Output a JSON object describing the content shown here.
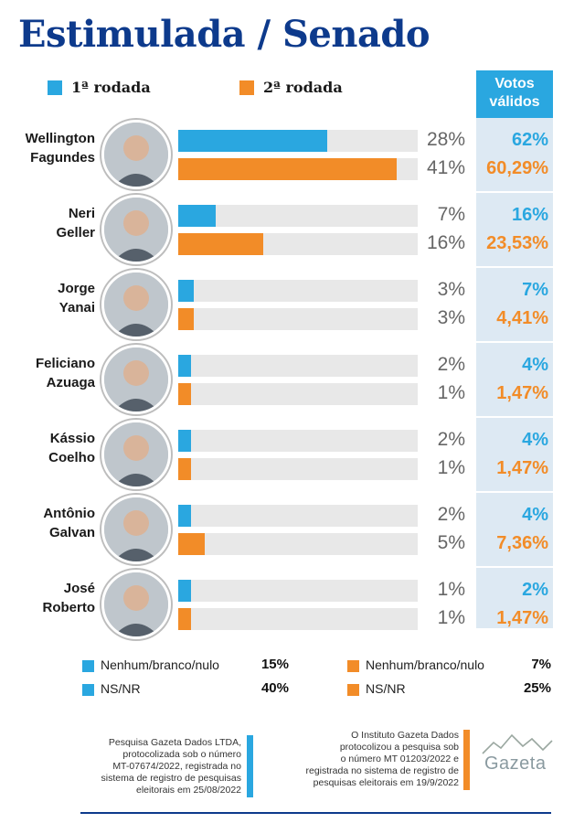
{
  "title": "Estimulada / Senado",
  "legend": {
    "round1": "1ª rodada",
    "round2": "2ª rodada"
  },
  "votos_validos_header": [
    "Votos",
    "válidos"
  ],
  "colors": {
    "round1": "#2aa7e0",
    "round2": "#f28c28",
    "title": "#0d3a8c",
    "track": "#e8e8e8"
  },
  "chart_data": {
    "type": "bar",
    "title": "Estimulada / Senado",
    "xlim": [
      0,
      45
    ],
    "series": [
      {
        "name": "1ª rodada",
        "values": [
          28,
          7,
          3,
          2,
          2,
          2,
          1
        ],
        "valid_votes": [
          "62%",
          "16%",
          "7%",
          "4%",
          "4%",
          "4%",
          "2%"
        ]
      },
      {
        "name": "2ª rodada",
        "values": [
          41,
          16,
          3,
          1,
          1,
          5,
          1
        ],
        "valid_votes": [
          "60,29%",
          "23,53%",
          "4,41%",
          "1,47%",
          "1,47%",
          "7,36%",
          "1,47%"
        ]
      }
    ],
    "candidates": [
      {
        "first": "Wellington",
        "last": "Fagundes",
        "r1": "28%",
        "r2": "41%",
        "vv1": "62%",
        "vv2": "60,29%"
      },
      {
        "first": "Neri",
        "last": "Geller",
        "r1": "7%",
        "r2": "16%",
        "vv1": "16%",
        "vv2": "23,53%"
      },
      {
        "first": "Jorge",
        "last": "Yanai",
        "r1": "3%",
        "r2": "3%",
        "vv1": "7%",
        "vv2": "4,41%"
      },
      {
        "first": "Feliciano",
        "last": "Azuaga",
        "r1": "2%",
        "r2": "1%",
        "vv1": "4%",
        "vv2": "1,47%"
      },
      {
        "first": "Kássio",
        "last": "Coelho",
        "r1": "2%",
        "r2": "1%",
        "vv1": "4%",
        "vv2": "1,47%"
      },
      {
        "first": "Antônio",
        "last": "Galvan",
        "r1": "2%",
        "r2": "5%",
        "vv1": "4%",
        "vv2": "7,36%"
      },
      {
        "first": "José",
        "last": "Roberto",
        "r1": "1%",
        "r2": "1%",
        "vv1": "2%",
        "vv2": "1,47%"
      }
    ]
  },
  "summary": {
    "round1": [
      {
        "label": "Nenhum/branco/nulo",
        "value": "15%"
      },
      {
        "label": "NS/NR",
        "value": "40%"
      }
    ],
    "round2": [
      {
        "label": "Nenhum/branco/nulo",
        "value": "7%"
      },
      {
        "label": "NS/NR",
        "value": "25%"
      }
    ]
  },
  "footnotes": {
    "round1": [
      "Pesquisa Gazeta Dados LTDA,",
      "protocolizada sob o número",
      "MT-07674/2022, registrada no",
      "sistema de registro de pesquisas",
      "eleitorais em 25/08/2022"
    ],
    "round2": [
      "O Instituto Gazeta Dados",
      "protocolizou a pesquisa sob",
      "o número MT 01203/2022 e",
      "registrada no sistema de registro de",
      "pesquisas eleitorais em 19/9/2022"
    ]
  },
  "logo": {
    "text": "Gazeta"
  }
}
